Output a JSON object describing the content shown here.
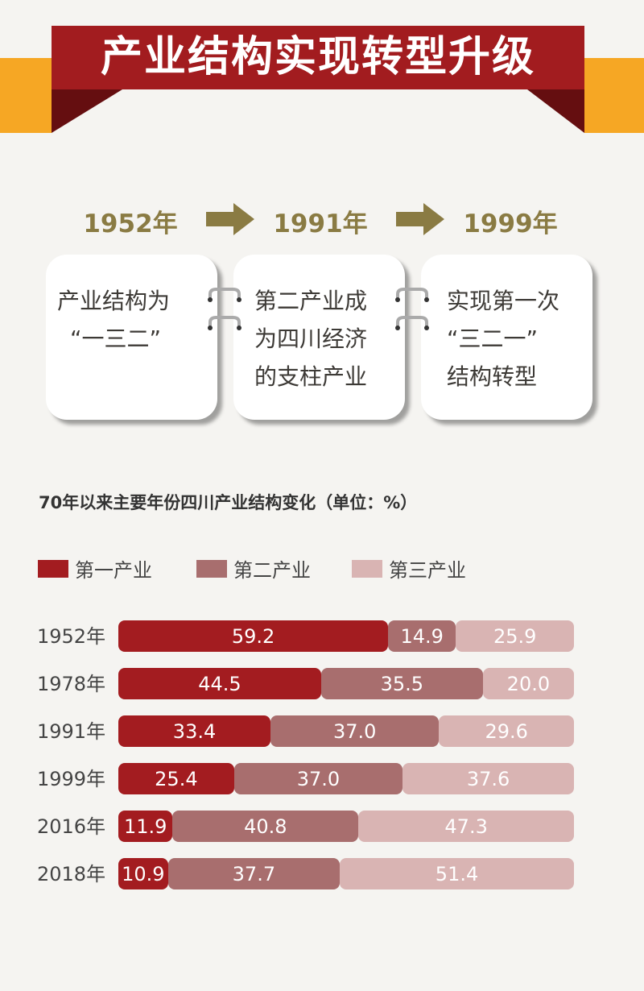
{
  "banner": {
    "title": "产业结构实现转型升级"
  },
  "timeline": [
    {
      "year": "1952年",
      "text": [
        "产业结构为",
        "“一三二”"
      ]
    },
    {
      "year": "1991年",
      "text": [
        "第二产业成",
        "为四川经济",
        "的支柱产业"
      ]
    },
    {
      "year": "1999年",
      "text": [
        "实现第一次",
        "“三二一”",
        "结构转型"
      ]
    }
  ],
  "colors": {
    "primary": "#a31c20",
    "secondary": "#a86e6e",
    "tertiary": "#d9b4b3",
    "year": "#8a7b43",
    "orange": "#f6a724"
  },
  "chart_data": {
    "type": "bar",
    "orientation": "horizontal",
    "stacked": true,
    "title": "70年以来主要年份四川产业结构变化（单位：%）",
    "legend_position": "top-left",
    "categories": [
      "1952年",
      "1978年",
      "1991年",
      "1999年",
      "2016年",
      "2018年"
    ],
    "series": [
      {
        "name": "第一产业",
        "values": [
          59.2,
          44.5,
          33.4,
          25.4,
          11.9,
          10.9
        ]
      },
      {
        "name": "第二产业",
        "values": [
          14.9,
          35.5,
          37.0,
          37.0,
          40.8,
          37.7
        ]
      },
      {
        "name": "第三产业",
        "values": [
          25.9,
          20.0,
          29.6,
          37.6,
          47.3,
          51.4
        ]
      }
    ],
    "xlim": [
      0,
      100
    ]
  }
}
